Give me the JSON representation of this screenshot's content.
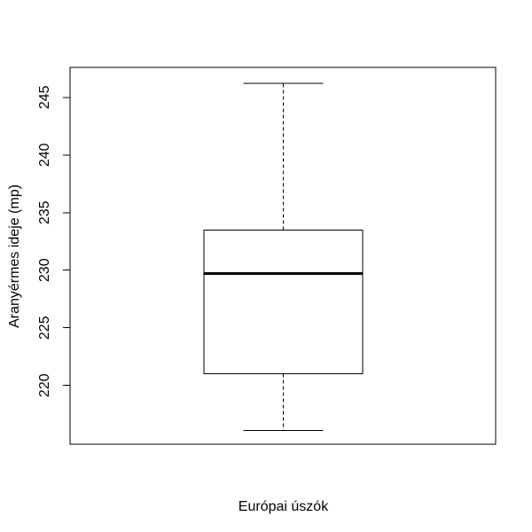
{
  "figure": {
    "background_color": "#ffffff",
    "stroke_color": "#000000"
  },
  "chart_data": {
    "type": "boxplot",
    "title": "",
    "xlabel": "Európai úszók",
    "ylabel": "Aranyérmes ideje (mp)",
    "categories": [
      "Európai úszók"
    ],
    "series": [
      {
        "name": "Európai úszók",
        "min": 216.1,
        "q1": 221.0,
        "median": 229.7,
        "q3": 233.5,
        "max": 246.2,
        "outliers": []
      }
    ],
    "yticks": [
      220,
      225,
      230,
      235,
      240,
      245
    ],
    "ytick_labels": [
      "220",
      "225",
      "230",
      "235",
      "240",
      "245"
    ],
    "ylim": [
      214.9,
      247.6
    ],
    "grid": false,
    "legend": "none",
    "box_fill": "none",
    "whisker_linestyle": "dashed",
    "stroke_color": "#000000"
  }
}
